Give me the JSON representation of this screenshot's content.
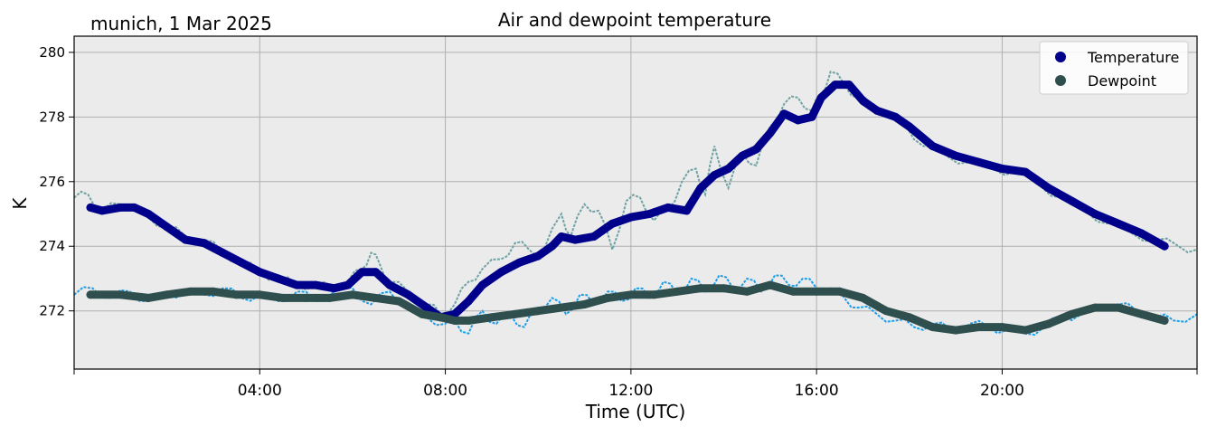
{
  "figure": {
    "location_date": "munich, 1 Mar 2025",
    "title": "Air and dewpoint temperature"
  },
  "colors": {
    "temperature_smooth": "#00008b",
    "temperature_raw": "#6fa3a3",
    "dewpoint_smooth": "#2f4f4f",
    "dewpoint_raw": "#1f9ee8",
    "plot_background": "#ebebeb",
    "grid": "#b0b0b0"
  },
  "chart_data": {
    "type": "line",
    "xlabel": "Time (UTC)",
    "ylabel": "K",
    "xlim": [
      0,
      24.2
    ],
    "ylim": [
      270.2,
      280.5
    ],
    "grid": true,
    "legend_position": "top-right",
    "x_ticks": [
      {
        "value": 4,
        "label": "04:00"
      },
      {
        "value": 8,
        "label": "08:00"
      },
      {
        "value": 12,
        "label": "12:00"
      },
      {
        "value": 16,
        "label": "16:00"
      },
      {
        "value": 20,
        "label": "20:00"
      }
    ],
    "y_ticks": [
      {
        "value": 272,
        "label": "272"
      },
      {
        "value": 274,
        "label": "274"
      },
      {
        "value": 276,
        "label": "276"
      },
      {
        "value": 278,
        "label": "278"
      },
      {
        "value": 280,
        "label": "280"
      }
    ],
    "series": [
      {
        "name": "Temperature",
        "x": [
          0.35,
          0.6,
          1.0,
          1.3,
          1.6,
          2.0,
          2.4,
          2.8,
          3.2,
          3.6,
          4.0,
          4.4,
          4.8,
          5.2,
          5.6,
          5.9,
          6.2,
          6.5,
          6.8,
          7.2,
          7.6,
          7.9,
          8.2,
          8.5,
          8.8,
          9.2,
          9.6,
          10.0,
          10.3,
          10.5,
          10.8,
          11.2,
          11.6,
          12.0,
          12.4,
          12.8,
          13.2,
          13.5,
          13.8,
          14.1,
          14.4,
          14.7,
          15.0,
          15.3,
          15.6,
          15.9,
          16.1,
          16.4,
          16.7,
          17.0,
          17.3,
          17.7,
          18.0,
          18.5,
          19.0,
          19.5,
          20.0,
          20.5,
          21.0,
          21.5,
          22.0,
          22.5,
          23.0,
          23.5
        ],
        "values": [
          275.2,
          275.1,
          275.2,
          275.2,
          275.0,
          274.6,
          274.2,
          274.1,
          273.8,
          273.5,
          273.2,
          273.0,
          272.8,
          272.8,
          272.7,
          272.8,
          273.2,
          273.2,
          272.8,
          272.5,
          272.1,
          271.8,
          271.9,
          272.3,
          272.8,
          273.2,
          273.5,
          273.7,
          274.0,
          274.3,
          274.2,
          274.3,
          274.7,
          274.9,
          275.0,
          275.2,
          275.1,
          275.8,
          276.2,
          276.4,
          276.8,
          277.0,
          277.5,
          278.1,
          277.9,
          278.0,
          278.6,
          279.0,
          279.0,
          278.5,
          278.2,
          278.0,
          277.7,
          277.1,
          276.8,
          276.6,
          276.4,
          276.3,
          275.8,
          275.4,
          275.0,
          274.7,
          274.4,
          274.0
        ]
      },
      {
        "name": "Dewpoint",
        "x": [
          0.35,
          1.0,
          1.6,
          2.0,
          2.5,
          3.0,
          3.5,
          4.0,
          4.5,
          5.0,
          5.5,
          6.0,
          6.5,
          7.0,
          7.5,
          7.9,
          8.2,
          8.5,
          9.0,
          9.5,
          10.0,
          10.5,
          11.0,
          11.5,
          12.0,
          12.5,
          13.0,
          13.5,
          14.0,
          14.5,
          15.0,
          15.5,
          16.0,
          16.5,
          17.0,
          17.5,
          18.0,
          18.5,
          19.0,
          19.5,
          20.0,
          20.5,
          21.0,
          21.5,
          22.0,
          22.5,
          23.0,
          23.5
        ],
        "values": [
          272.5,
          272.5,
          272.4,
          272.5,
          272.6,
          272.6,
          272.5,
          272.5,
          272.4,
          272.4,
          272.4,
          272.5,
          272.4,
          272.3,
          271.9,
          271.8,
          271.7,
          271.7,
          271.8,
          271.9,
          272.0,
          272.1,
          272.2,
          272.4,
          272.5,
          272.5,
          272.6,
          272.7,
          272.7,
          272.6,
          272.8,
          272.6,
          272.6,
          272.6,
          272.4,
          272.0,
          271.8,
          271.5,
          271.4,
          271.5,
          271.5,
          271.4,
          271.6,
          271.9,
          272.1,
          272.1,
          271.9,
          271.7
        ]
      }
    ],
    "raw_series": [
      {
        "x": [
          0.0,
          0.3,
          0.6,
          1.0,
          1.3,
          1.6,
          2.0,
          2.4,
          2.8,
          3.2,
          3.6,
          4.0,
          4.4,
          4.8,
          5.2,
          5.6,
          5.9,
          6.2,
          6.4,
          6.6,
          6.8,
          7.2,
          7.6,
          7.9,
          8.2,
          8.5,
          8.8,
          9.2,
          9.5,
          9.8,
          10.1,
          10.5,
          10.7,
          11.0,
          11.3,
          11.6,
          11.9,
          12.2,
          12.5,
          12.8,
          13.1,
          13.4,
          13.6,
          13.8,
          14.1,
          14.4,
          14.7,
          15.0,
          15.3,
          15.6,
          15.9,
          16.1,
          16.3,
          16.6,
          16.9,
          17.2,
          17.5,
          17.9,
          18.3,
          18.8,
          19.3,
          19.8,
          20.3,
          20.8,
          21.3,
          21.8,
          22.3,
          22.8,
          23.3,
          23.8,
          24.2
        ],
        "values": [
          275.5,
          275.6,
          275.1,
          275.3,
          275.2,
          274.9,
          274.6,
          274.3,
          274.2,
          273.8,
          273.5,
          273.2,
          273.0,
          272.8,
          272.8,
          272.7,
          272.9,
          273.3,
          273.8,
          273.4,
          272.9,
          272.6,
          272.2,
          271.9,
          272.2,
          272.9,
          273.3,
          273.6,
          274.1,
          273.9,
          273.8,
          275.0,
          274.3,
          275.3,
          275.1,
          273.9,
          275.4,
          275.5,
          274.8,
          275.1,
          276.0,
          276.4,
          275.6,
          277.1,
          275.8,
          276.9,
          276.5,
          277.7,
          278.4,
          278.6,
          278.2,
          278.7,
          279.4,
          279.0,
          278.6,
          278.3,
          278.1,
          277.8,
          277.1,
          276.8,
          276.6,
          276.4,
          276.3,
          275.9,
          275.5,
          275.1,
          274.7,
          274.4,
          274.2,
          274.0,
          273.9
        ]
      },
      {
        "x": [
          0.0,
          0.4,
          0.8,
          1.2,
          1.6,
          2.0,
          2.4,
          2.8,
          3.2,
          3.6,
          4.0,
          4.4,
          4.8,
          5.2,
          5.6,
          6.0,
          6.4,
          6.8,
          7.2,
          7.6,
          8.0,
          8.2,
          8.5,
          8.8,
          9.1,
          9.4,
          9.7,
          10.0,
          10.3,
          10.6,
          10.9,
          11.2,
          11.5,
          11.8,
          12.1,
          12.4,
          12.7,
          13.0,
          13.3,
          13.6,
          13.9,
          14.2,
          14.5,
          14.8,
          15.1,
          15.4,
          15.7,
          16.0,
          16.3,
          16.6,
          16.9,
          17.3,
          17.7,
          18.1,
          18.5,
          18.9,
          19.3,
          19.7,
          20.1,
          20.5,
          20.9,
          21.3,
          21.7,
          22.1,
          22.5,
          22.9,
          23.3,
          23.7,
          24.2
        ],
        "values": [
          272.5,
          272.7,
          272.4,
          272.6,
          272.3,
          272.5,
          272.6,
          272.5,
          272.7,
          272.4,
          272.5,
          272.3,
          272.6,
          272.3,
          272.6,
          272.7,
          272.2,
          272.6,
          272.1,
          271.8,
          271.6,
          271.7,
          271.3,
          272.0,
          271.6,
          271.9,
          271.5,
          272.1,
          272.4,
          271.9,
          272.5,
          272.2,
          272.6,
          272.3,
          272.7,
          272.4,
          272.9,
          272.5,
          273.0,
          272.6,
          273.1,
          272.7,
          273.0,
          272.6,
          273.1,
          272.8,
          273.0,
          272.7,
          272.7,
          272.4,
          272.1,
          271.9,
          271.7,
          271.5,
          271.6,
          271.4,
          271.6,
          271.5,
          271.4,
          271.3,
          271.5,
          271.8,
          271.9,
          272.1,
          272.2,
          272.0,
          271.8,
          271.7,
          271.9
        ]
      }
    ]
  }
}
